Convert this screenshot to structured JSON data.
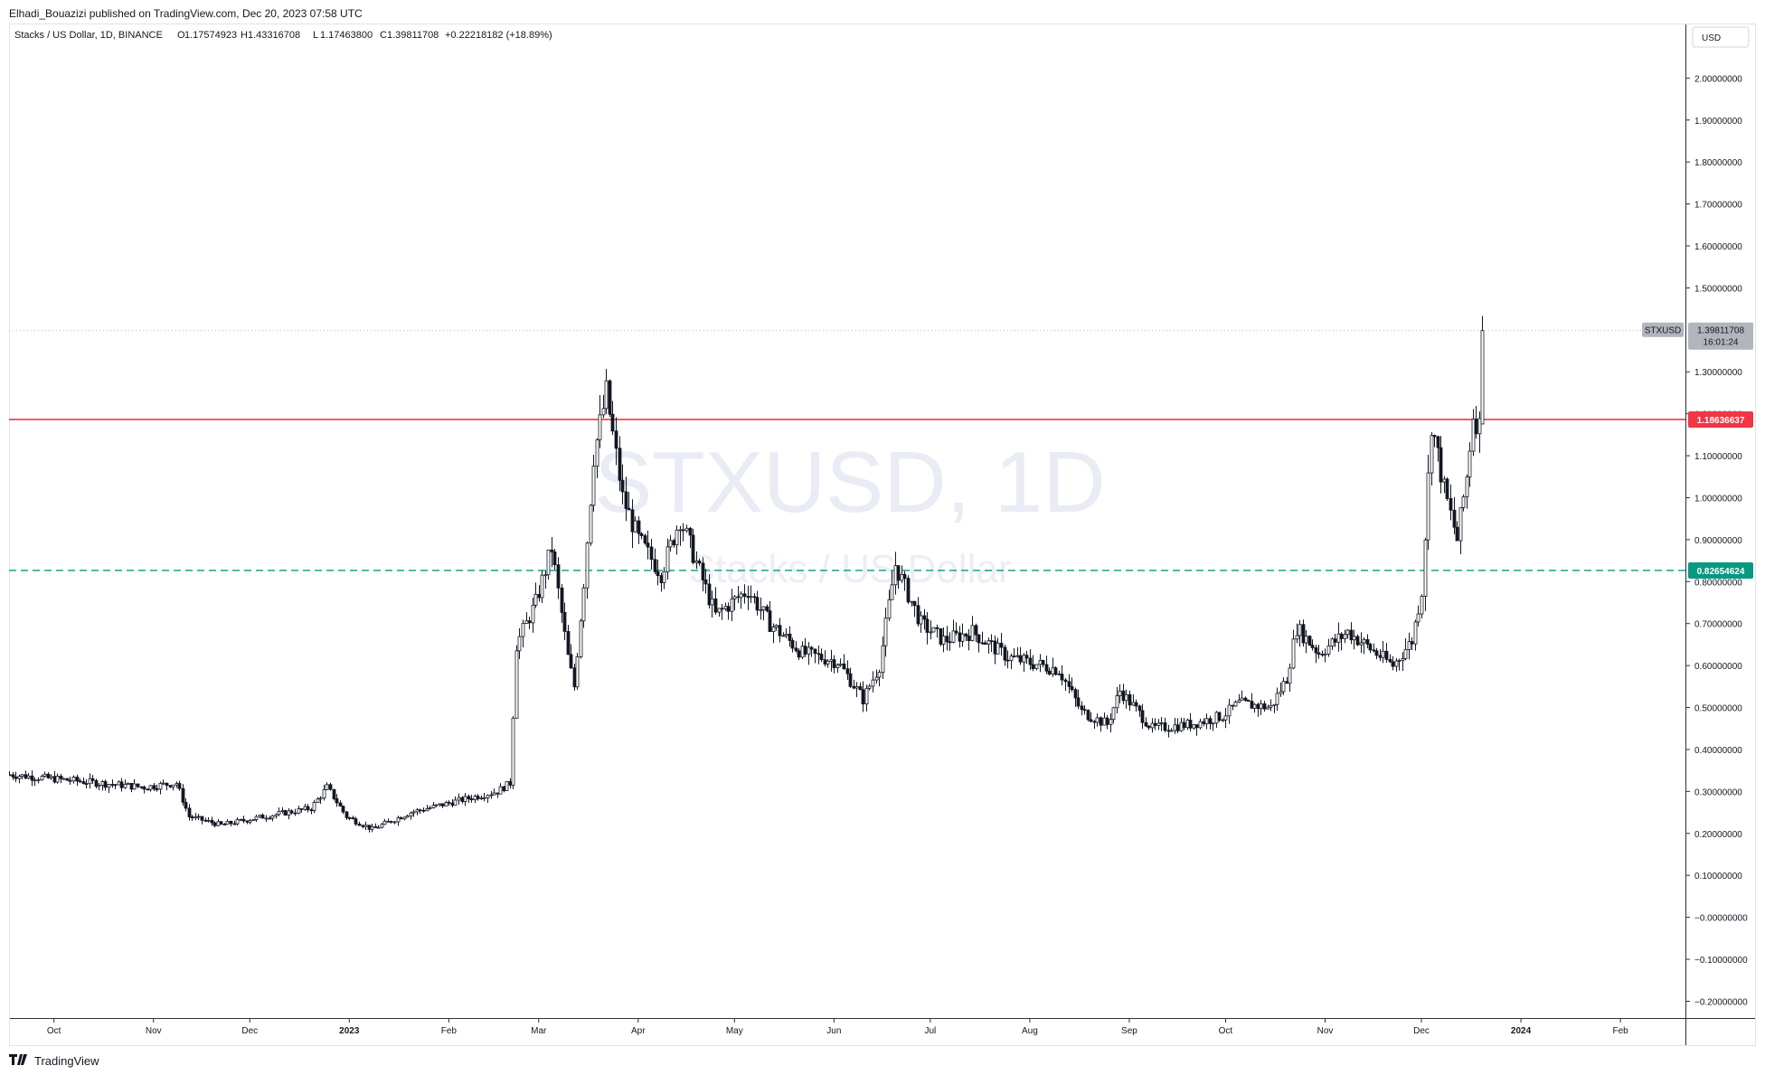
{
  "header": {
    "published": "Elhadi_Bouazizi published on TradingView.com, Dec 20, 2023 07:58 UTC"
  },
  "legend": {
    "symbol_desc": "Stacks / US Dollar, 1D, BINANCE",
    "o_label": "O",
    "o_value": "1.17574923",
    "h_label": "H",
    "h_value": "1.43316708",
    "l_label": "L",
    "l_value": "1.17463800",
    "c_label": "C",
    "c_value": "1.39811708",
    "change": "+0.22218182 (+18.89%)"
  },
  "watermark": {
    "line1": "STXUSD, 1D",
    "line2": "Stacks / US Dollar"
  },
  "price_scale": {
    "currency_button": "USD"
  },
  "footer": {
    "brand": "TradingView",
    "logo_icon": "tradingview-logo-icon"
  },
  "colors": {
    "up": "#131722",
    "down": "#131722",
    "resistance": "#f23645",
    "support": "#089981",
    "last_price_tag": "#9598a1",
    "grid_text": "#131722"
  },
  "chart_data": {
    "type": "candlestick",
    "title": "Stacks / US Dollar, 1D, BINANCE",
    "symbol": "STXUSD",
    "ylim": [
      -0.24,
      2.13
    ],
    "y_ticks": [
      "2.00000000",
      "1.90000000",
      "1.80000000",
      "1.70000000",
      "1.60000000",
      "1.50000000",
      "1.30000000",
      "1.20000000",
      "1.10000000",
      "1.00000000",
      "0.90000000",
      "0.80000000",
      "0.70000000",
      "0.60000000",
      "0.50000000",
      "0.40000000",
      "0.30000000",
      "0.20000000",
      "0.10000000",
      "−0.00000000",
      "−0.10000000",
      "−0.20000000"
    ],
    "x_ticks": [
      "Oct",
      "Nov",
      "Dec",
      "2023",
      "Feb",
      "Mar",
      "Apr",
      "May",
      "Jun",
      "Jul",
      "Aug",
      "Sep",
      "Oct",
      "Nov",
      "Dec",
      "2024",
      "Feb"
    ],
    "horizontal_lines": [
      {
        "value": 1.18636637,
        "label": "1.18636637",
        "style": "solid",
        "color": "#f23645"
      },
      {
        "value": 0.82654624,
        "label": "0.82654624",
        "style": "dashed",
        "color": "#089981"
      }
    ],
    "last_price": {
      "symbol": "STXUSD",
      "value": 1.39811708,
      "label": "1.39811708",
      "countdown": "16:01:24"
    },
    "close_path": [
      [
        "2022-09-17",
        0.34
      ],
      [
        "2022-10-01",
        0.33
      ],
      [
        "2022-10-15",
        0.32
      ],
      [
        "2022-10-29",
        0.31
      ],
      [
        "2022-11-08",
        0.32
      ],
      [
        "2022-11-12",
        0.24
      ],
      [
        "2022-11-22",
        0.22
      ],
      [
        "2022-12-05",
        0.24
      ],
      [
        "2022-12-20",
        0.26
      ],
      [
        "2022-12-25",
        0.31
      ],
      [
        "2022-12-31",
        0.24
      ],
      [
        "2023-01-08",
        0.21
      ],
      [
        "2023-01-20",
        0.25
      ],
      [
        "2023-02-05",
        0.28
      ],
      [
        "2023-02-16",
        0.3
      ],
      [
        "2023-02-20",
        0.32
      ],
      [
        "2023-02-22",
        0.65
      ],
      [
        "2023-02-28",
        0.75
      ],
      [
        "2023-03-05",
        0.88
      ],
      [
        "2023-03-10",
        0.62
      ],
      [
        "2023-03-12",
        0.55
      ],
      [
        "2023-03-15",
        0.8
      ],
      [
        "2023-03-18",
        1.1
      ],
      [
        "2023-03-22",
        1.25
      ],
      [
        "2023-03-27",
        1.0
      ],
      [
        "2023-04-01",
        0.9
      ],
      [
        "2023-04-08",
        0.82
      ],
      [
        "2023-04-14",
        0.95
      ],
      [
        "2023-04-25",
        0.72
      ],
      [
        "2023-05-05",
        0.78
      ],
      [
        "2023-05-12",
        0.7
      ],
      [
        "2023-05-22",
        0.63
      ],
      [
        "2023-06-02",
        0.61
      ],
      [
        "2023-06-10",
        0.52
      ],
      [
        "2023-06-15",
        0.6
      ],
      [
        "2023-06-20",
        0.84
      ],
      [
        "2023-06-28",
        0.7
      ],
      [
        "2023-07-05",
        0.66
      ],
      [
        "2023-07-14",
        0.68
      ],
      [
        "2023-07-25",
        0.62
      ],
      [
        "2023-08-10",
        0.59
      ],
      [
        "2023-08-17",
        0.49
      ],
      [
        "2023-08-25",
        0.46
      ],
      [
        "2023-08-29",
        0.54
      ],
      [
        "2023-09-08",
        0.45
      ],
      [
        "2023-09-20",
        0.46
      ],
      [
        "2023-09-30",
        0.48
      ],
      [
        "2023-10-05",
        0.51
      ],
      [
        "2023-10-15",
        0.5
      ],
      [
        "2023-10-20",
        0.57
      ],
      [
        "2023-10-23",
        0.69
      ],
      [
        "2023-10-30",
        0.63
      ],
      [
        "2023-11-08",
        0.68
      ],
      [
        "2023-11-15",
        0.64
      ],
      [
        "2023-11-22",
        0.6
      ],
      [
        "2023-11-28",
        0.66
      ],
      [
        "2023-12-01",
        0.78
      ],
      [
        "2023-12-04",
        1.18
      ],
      [
        "2023-12-08",
        1.02
      ],
      [
        "2023-12-12",
        0.9
      ],
      [
        "2023-12-15",
        1.05
      ],
      [
        "2023-12-17",
        1.2
      ],
      [
        "2023-12-19",
        1.17
      ],
      [
        "2023-12-20",
        1.398
      ]
    ]
  }
}
